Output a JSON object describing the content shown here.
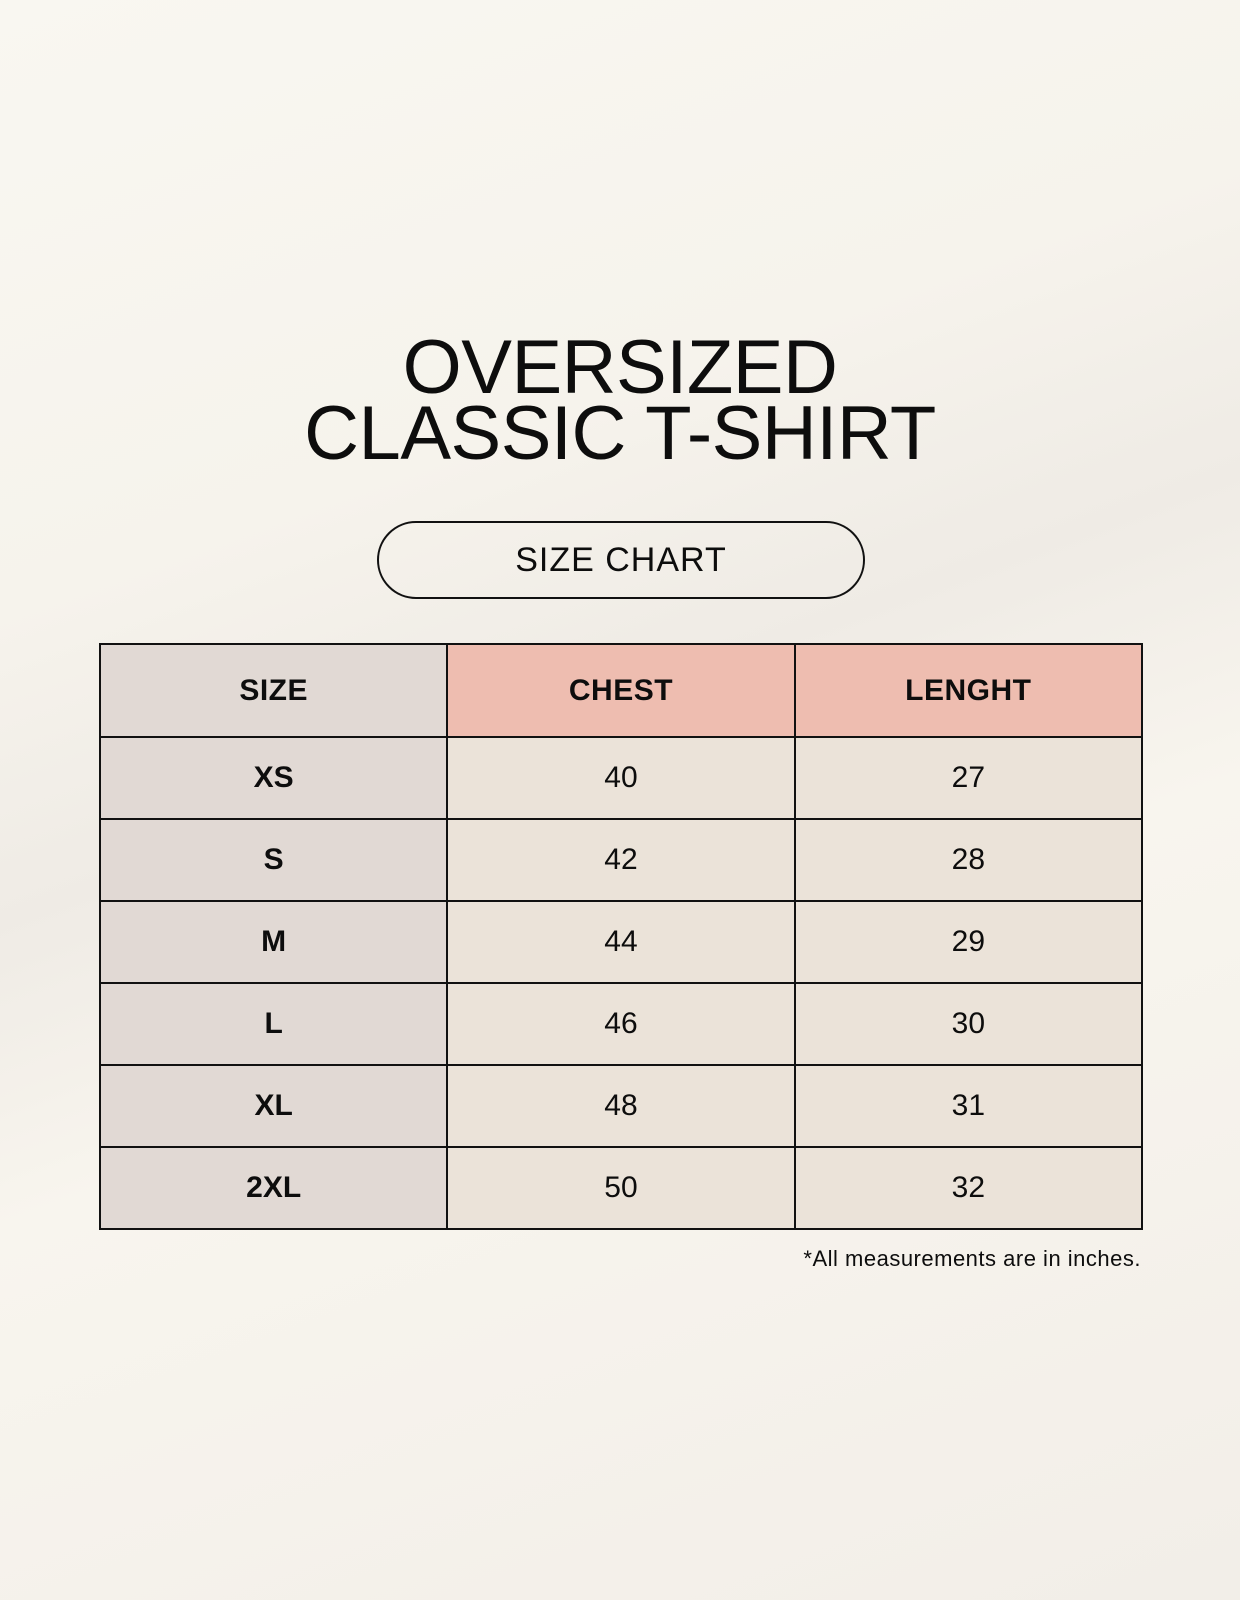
{
  "title": {
    "line1": "OVERSIZED",
    "line2": "CLASSIC T-SHIRT"
  },
  "subtitle": "SIZE CHART",
  "table": {
    "headers": [
      "SIZE",
      "CHEST",
      "LENGHT"
    ],
    "rows": [
      [
        "XS",
        "40",
        "27"
      ],
      [
        "S",
        "42",
        "28"
      ],
      [
        "M",
        "44",
        "29"
      ],
      [
        "L",
        "46",
        "30"
      ],
      [
        "XL",
        "48",
        "31"
      ],
      [
        "2XL",
        "50",
        "32"
      ]
    ]
  },
  "footnote": "*All measurements are in inches.",
  "colors": {
    "size_column": "#e1d9d4",
    "header_accent": "#eebdb0",
    "cell": "#ebe3d9",
    "background": "#f8f5ef"
  }
}
